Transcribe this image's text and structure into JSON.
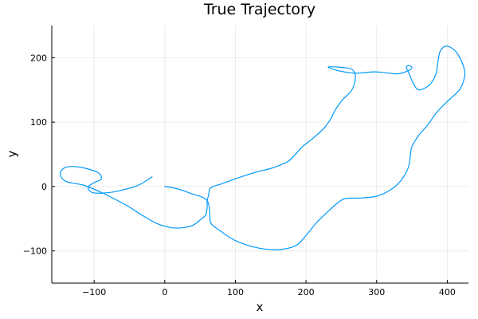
{
  "chart_data": {
    "type": "line",
    "title": "True Trajectory",
    "xlabel": "x",
    "ylabel": "y",
    "xlim": [
      -160,
      430
    ],
    "ylim": [
      -150,
      250
    ],
    "xticks": [
      -100,
      0,
      100,
      200,
      300,
      400
    ],
    "yticks": [
      -100,
      0,
      100,
      200
    ],
    "xtick_labels": [
      "−100",
      "0",
      "100",
      "200",
      "300",
      "400"
    ],
    "ytick_labels": [
      "−100",
      "0",
      "100",
      "200"
    ],
    "grid": true,
    "legend": false,
    "line_color": "#009AFA",
    "series": [
      {
        "x": [
          0,
          12,
          25,
          40,
          52,
          60,
          63,
          64,
          66,
          80,
          100,
          130,
          160,
          185,
          200,
          215,
          230,
          242,
          252,
          262,
          275,
          300,
          320,
          335,
          345,
          348,
          350,
          360,
          372,
          385,
          400,
          413,
          420,
          425,
          420,
          410,
          398,
          390,
          387,
          384,
          375,
          360,
          352,
          345,
          342,
          345,
          350,
          345,
          330,
          310,
          295,
          270,
          245,
          232,
          235,
          250,
          265,
          270,
          265,
          252,
          242,
          235,
          225,
          210,
          195,
          185,
          176,
          165,
          150,
          125,
          100,
          80,
          65,
          62,
          60,
          60,
          58,
          50,
          40,
          25,
          10,
          -10,
          -30,
          -50,
          -70,
          -90,
          -115,
          -140,
          -148,
          -140,
          -120,
          -95,
          -90,
          -100,
          -108,
          -107,
          -100,
          -85,
          -70,
          -55,
          -42,
          -32,
          -18
        ],
        "y": [
          0,
          -2,
          -6,
          -12,
          -16,
          -22,
          -32,
          -48,
          -58,
          -70,
          -84,
          -95,
          -98,
          -92,
          -76,
          -56,
          -40,
          -28,
          -20,
          -18,
          -18,
          -15,
          -5,
          10,
          30,
          50,
          62,
          80,
          95,
          115,
          132,
          145,
          155,
          175,
          195,
          212,
          218,
          210,
          195,
          175,
          158,
          150,
          160,
          178,
          185,
          188,
          185,
          180,
          175,
          177,
          178,
          176,
          180,
          185,
          186,
          185,
          182,
          170,
          150,
          135,
          120,
          105,
          90,
          75,
          62,
          50,
          40,
          34,
          28,
          21,
          12,
          4,
          -2,
          -14,
          -22,
          -32,
          -44,
          -52,
          -60,
          -64,
          -64,
          -58,
          -46,
          -32,
          -20,
          -9,
          2,
          8,
          20,
          30,
          30,
          22,
          12,
          6,
          0,
          -6,
          -10,
          -10,
          -8,
          -4,
          0,
          5,
          15
        ]
      }
    ]
  }
}
